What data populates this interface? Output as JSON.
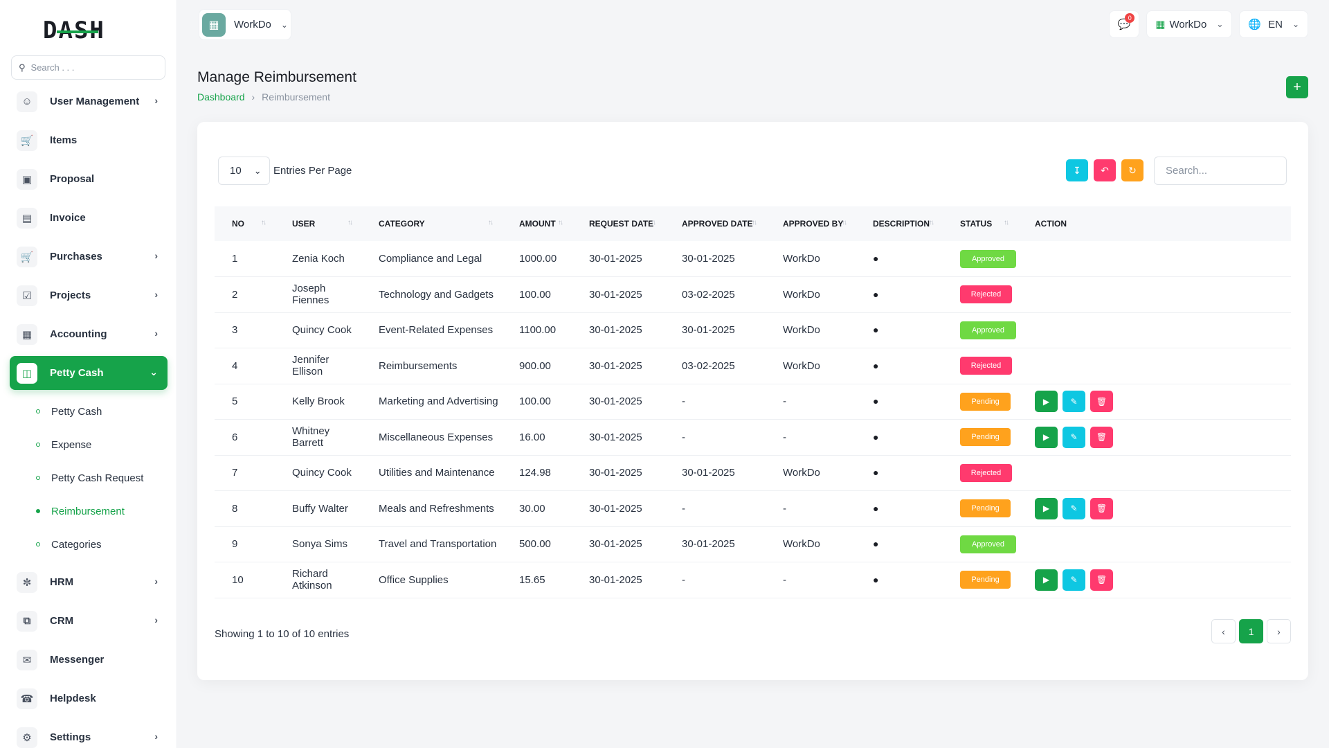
{
  "brand": {
    "logo_text": "DASH"
  },
  "sidebar": {
    "search_placeholder": "Search . . .",
    "items": [
      {
        "label": "User Management",
        "icon": "users-icon",
        "has_chevron": true
      },
      {
        "label": "Items",
        "icon": "cart-icon",
        "has_chevron": false
      },
      {
        "label": "Proposal",
        "icon": "proposal-icon",
        "has_chevron": false
      },
      {
        "label": "Invoice",
        "icon": "invoice-icon",
        "has_chevron": false
      },
      {
        "label": "Purchases",
        "icon": "cart-icon",
        "has_chevron": true
      },
      {
        "label": "Projects",
        "icon": "checkbox-icon",
        "has_chevron": true
      },
      {
        "label": "Accounting",
        "icon": "grid-icon",
        "has_chevron": true
      },
      {
        "label": "Petty Cash",
        "icon": "cash-icon",
        "has_chevron": true,
        "active": true
      }
    ],
    "petty_cash_sub": [
      {
        "label": "Petty Cash"
      },
      {
        "label": "Expense"
      },
      {
        "label": "Petty Cash Request"
      },
      {
        "label": "Reimbursement",
        "current": true
      },
      {
        "label": "Categories"
      }
    ],
    "items_after": [
      {
        "label": "HRM",
        "icon": "hrm-icon",
        "has_chevron": true
      },
      {
        "label": "CRM",
        "icon": "crm-icon",
        "has_chevron": true
      },
      {
        "label": "Messenger",
        "icon": "chat-icon",
        "has_chevron": false
      },
      {
        "label": "Helpdesk",
        "icon": "headset-icon",
        "has_chevron": false
      },
      {
        "label": "Settings",
        "icon": "gear-icon",
        "has_chevron": true
      }
    ]
  },
  "topbar": {
    "workspace": "WorkDo",
    "notification_count": "0",
    "company": "WorkDo",
    "language": "EN"
  },
  "page": {
    "title": "Manage Reimbursement",
    "breadcrumb": [
      "Dashboard",
      "Reimbursement"
    ]
  },
  "table_controls": {
    "per_page": "10",
    "per_page_label": "Entries Per Page",
    "search_placeholder": "Search..."
  },
  "table": {
    "columns": [
      "NO",
      "USER",
      "CATEGORY",
      "AMOUNT",
      "REQUEST DATE",
      "APPROVED DATE",
      "APPROVED BY",
      "DESCRIPTION",
      "STATUS",
      "ACTION"
    ],
    "rows": [
      {
        "no": "1",
        "user": "Zenia Koch",
        "category": "Compliance and Legal",
        "amount": "1000.00",
        "request_date": "30-01-2025",
        "approved_date": "30-01-2025",
        "approved_by": "WorkDo",
        "status": "Approved",
        "actions": false
      },
      {
        "no": "2",
        "user": "Joseph Fiennes",
        "category": "Technology and Gadgets",
        "amount": "100.00",
        "request_date": "30-01-2025",
        "approved_date": "03-02-2025",
        "approved_by": "WorkDo",
        "status": "Rejected",
        "actions": false
      },
      {
        "no": "3",
        "user": "Quincy Cook",
        "category": "Event-Related Expenses",
        "amount": "1100.00",
        "request_date": "30-01-2025",
        "approved_date": "30-01-2025",
        "approved_by": "WorkDo",
        "status": "Approved",
        "actions": false
      },
      {
        "no": "4",
        "user": "Jennifer Ellison",
        "category": "Reimbursements",
        "amount": "900.00",
        "request_date": "30-01-2025",
        "approved_date": "03-02-2025",
        "approved_by": "WorkDo",
        "status": "Rejected",
        "actions": false
      },
      {
        "no": "5",
        "user": "Kelly Brook",
        "category": "Marketing and Advertising",
        "amount": "100.00",
        "request_date": "30-01-2025",
        "approved_date": "-",
        "approved_by": "-",
        "status": "Pending",
        "actions": true
      },
      {
        "no": "6",
        "user": "Whitney Barrett",
        "category": "Miscellaneous Expenses",
        "amount": "16.00",
        "request_date": "30-01-2025",
        "approved_date": "-",
        "approved_by": "-",
        "status": "Pending",
        "actions": true
      },
      {
        "no": "7",
        "user": "Quincy Cook",
        "category": "Utilities and Maintenance",
        "amount": "124.98",
        "request_date": "30-01-2025",
        "approved_date": "30-01-2025",
        "approved_by": "WorkDo",
        "status": "Rejected",
        "actions": false
      },
      {
        "no": "8",
        "user": "Buffy Walter",
        "category": "Meals and Refreshments",
        "amount": "30.00",
        "request_date": "30-01-2025",
        "approved_date": "-",
        "approved_by": "-",
        "status": "Pending",
        "actions": true
      },
      {
        "no": "9",
        "user": "Sonya Sims",
        "category": "Travel and Transportation",
        "amount": "500.00",
        "request_date": "30-01-2025",
        "approved_date": "30-01-2025",
        "approved_by": "WorkDo",
        "status": "Approved",
        "actions": false
      },
      {
        "no": "10",
        "user": "Richard Atkinson",
        "category": "Office Supplies",
        "amount": "15.65",
        "request_date": "30-01-2025",
        "approved_date": "-",
        "approved_by": "-",
        "status": "Pending",
        "actions": true
      }
    ]
  },
  "footer": {
    "showing": "Showing 1 to 10 of 10 entries",
    "current_page": "1"
  },
  "colors": {
    "primary": "#16a34a",
    "approved": "#6fd943",
    "rejected": "#ff3a6e",
    "pending": "#ffa21d",
    "info": "#0ec7e2"
  }
}
